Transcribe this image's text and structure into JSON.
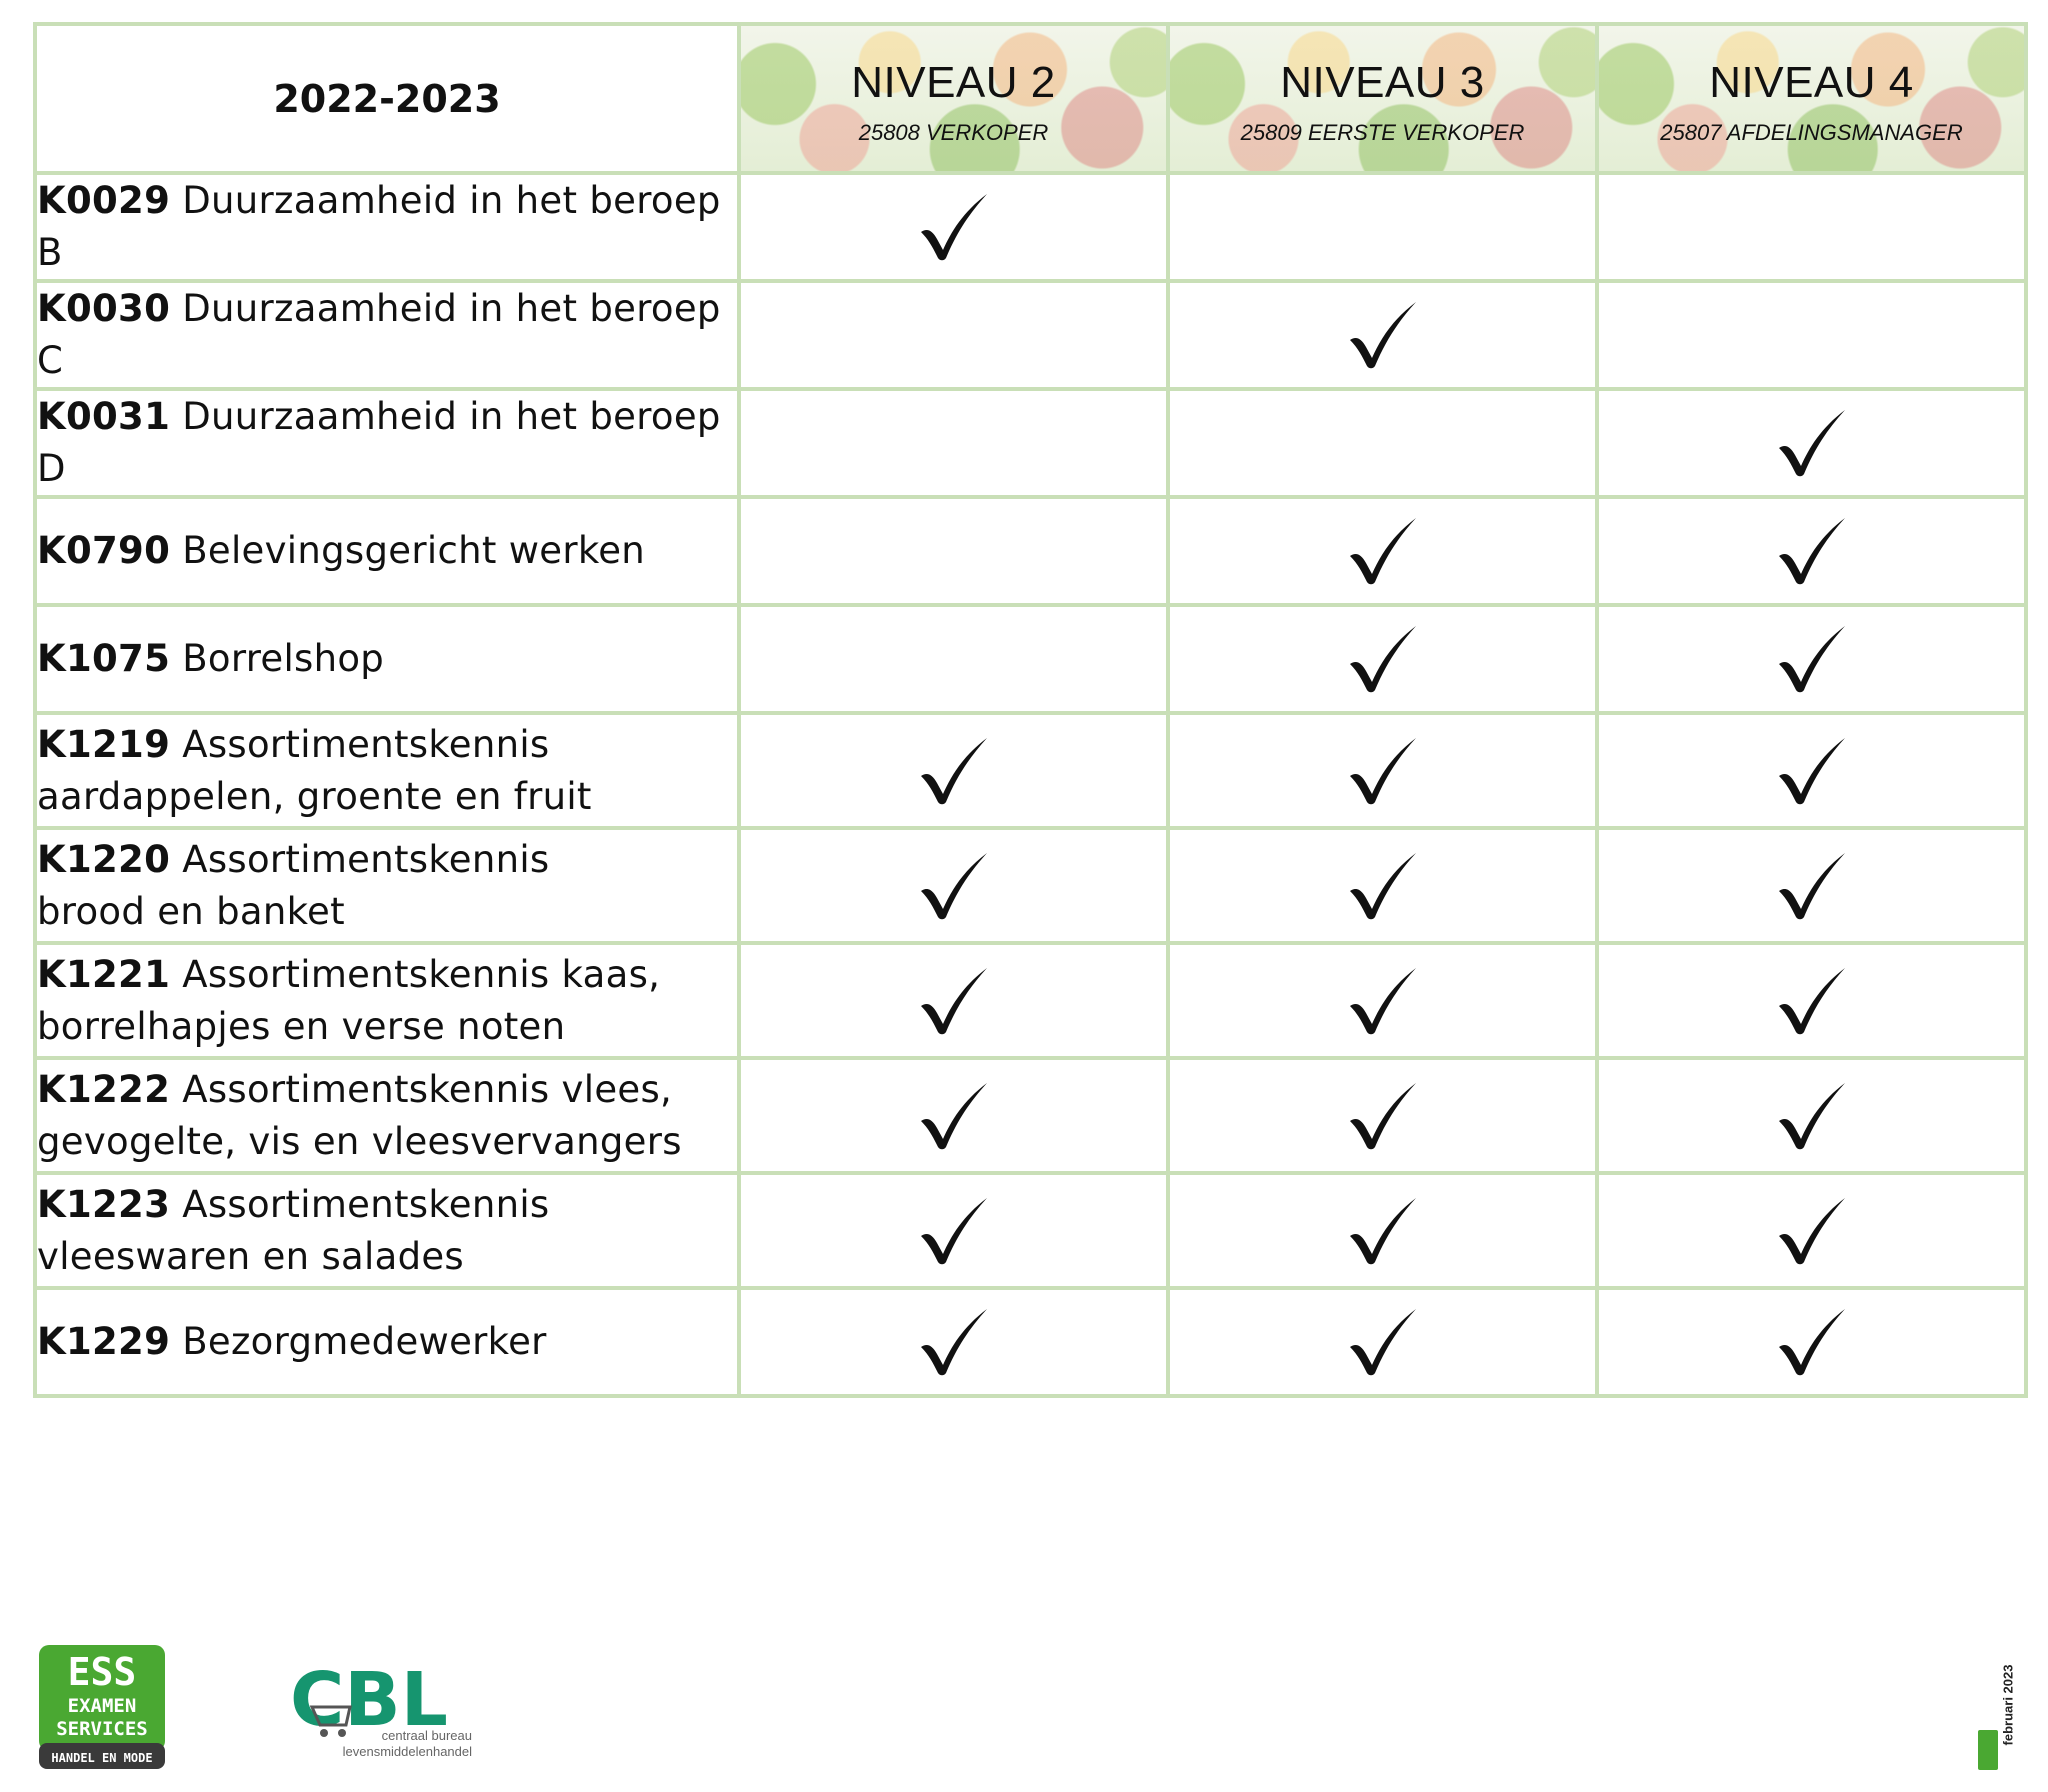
{
  "header": {
    "year": "2022-2023",
    "levels": [
      {
        "title": "NIVEAU 2",
        "subtitle": "25808 VERKOPER"
      },
      {
        "title": "NIVEAU 3",
        "subtitle": "25809 EERSTE VERKOPER"
      },
      {
        "title": "NIVEAU 4",
        "subtitle": "25807 AFDELINGSMANAGER"
      }
    ]
  },
  "rows": [
    {
      "code": "K0029",
      "title": "Duurzaamheid in het beroep B",
      "checks": [
        true,
        false,
        false
      ]
    },
    {
      "code": "K0030",
      "title": "Duurzaamheid in het beroep C",
      "checks": [
        false,
        true,
        false
      ]
    },
    {
      "code": "K0031",
      "title": "Duurzaamheid in het beroep D",
      "checks": [
        false,
        false,
        true
      ]
    },
    {
      "code": "K0790",
      "title": "Belevingsgericht werken",
      "checks": [
        false,
        true,
        true
      ]
    },
    {
      "code": "K1075",
      "title": "Borrelshop",
      "checks": [
        false,
        true,
        true
      ]
    },
    {
      "code": "K1219",
      "title": "Assortimentskennis",
      "title2": "aardappelen, groente en fruit",
      "checks": [
        true,
        true,
        true
      ]
    },
    {
      "code": "K1220",
      "title": "Assortimentskennis",
      "title2": "brood en banket",
      "checks": [
        true,
        true,
        true
      ]
    },
    {
      "code": "K1221",
      "title": "Assortimentskennis kaas,",
      "title2": "borrelhapjes en verse noten",
      "checks": [
        true,
        true,
        true
      ]
    },
    {
      "code": "K1222",
      "title": "Assortimentskennis vlees,",
      "title2": "gevogelte, vis en vleesvervangers",
      "checks": [
        true,
        true,
        true
      ]
    },
    {
      "code": "K1223",
      "title": "Assortimentskennis",
      "title2": "vleeswaren en salades",
      "checks": [
        true,
        true,
        true
      ]
    },
    {
      "code": "K1229",
      "title": "Bezorgmedewerker",
      "checks": [
        true,
        true,
        true
      ]
    }
  ],
  "footer": {
    "ess_logo": {
      "line1": "ESS",
      "line2": "EXAMEN",
      "line3": "SERVICES",
      "tag": "HANDEL EN MODE"
    },
    "cbl_logo": {
      "letters": "CBL",
      "sub1": "centraal bureau",
      "sub2": "levensmiddelenhandel"
    },
    "date": "februari 2023",
    "colors": {
      "ess_green": "#4aa832",
      "cbl_teal": "#16956f",
      "grid": "#c9dfb7"
    }
  }
}
